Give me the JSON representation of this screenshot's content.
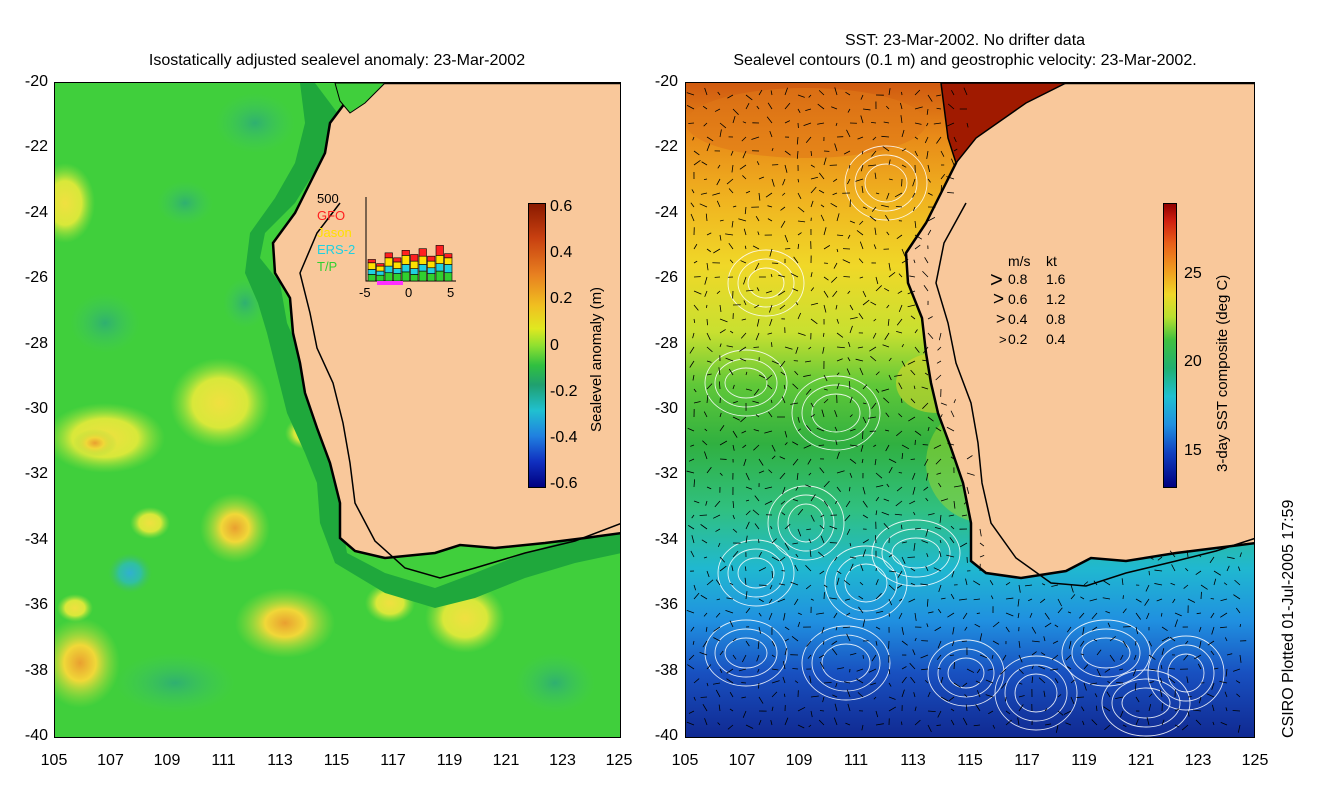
{
  "left_panel": {
    "title": "Isostatically adjusted sealevel anomaly: 23-Mar-2002",
    "y_ticks": [
      "-20",
      "-22",
      "-24",
      "-26",
      "-28",
      "-30",
      "-32",
      "-34",
      "-36",
      "-38",
      "-40"
    ],
    "x_ticks": [
      "105",
      "107",
      "109",
      "111",
      "113",
      "115",
      "117",
      "119",
      "121",
      "123",
      "125"
    ],
    "colorbar": {
      "label": "Sealevel anomaly (m)",
      "ticks": [
        "0.6",
        "0.4",
        "0.2",
        "0",
        "-0.2",
        "-0.4",
        "-0.6"
      ],
      "range": [
        -0.6,
        0.6
      ]
    },
    "inset": {
      "ymax_label": "500",
      "legend": [
        {
          "name": "GFO",
          "color": "#ff2020"
        },
        {
          "name": "Jason",
          "color": "#ffe000"
        },
        {
          "name": "ERS-2",
          "color": "#20d0e0"
        },
        {
          "name": "T/P",
          "color": "#30d030"
        }
      ],
      "x_ticks": [
        "-5",
        "0",
        "5"
      ],
      "bars": [
        {
          "tp": 40,
          "ers": 30,
          "jason": 40,
          "gfo": 20
        },
        {
          "tp": 35,
          "ers": 25,
          "jason": 30,
          "gfo": 15
        },
        {
          "tp": 50,
          "ers": 40,
          "jason": 50,
          "gfo": 30
        },
        {
          "tp": 45,
          "ers": 30,
          "jason": 40,
          "gfo": 25
        },
        {
          "tp": 55,
          "ers": 45,
          "jason": 55,
          "gfo": 30
        },
        {
          "tp": 40,
          "ers": 35,
          "jason": 45,
          "gfo": 40
        },
        {
          "tp": 60,
          "ers": 40,
          "jason": 50,
          "gfo": 45
        },
        {
          "tp": 45,
          "ers": 35,
          "jason": 40,
          "gfo": 30
        },
        {
          "tp": 60,
          "ers": 45,
          "jason": 50,
          "gfo": 60
        },
        {
          "tp": 50,
          "ers": 50,
          "jason": 40,
          "gfo": 25
        }
      ]
    }
  },
  "right_panel": {
    "title_line1": "SST: 23-Mar-2002. No drifter data",
    "title_line2": "Sealevel contours (0.1 m) and geostrophic velocity: 23-Mar-2002.",
    "y_ticks": [
      "-20",
      "-22",
      "-24",
      "-26",
      "-28",
      "-30",
      "-32",
      "-34",
      "-36",
      "-38",
      "-40"
    ],
    "x_ticks": [
      "105",
      "107",
      "109",
      "111",
      "113",
      "115",
      "117",
      "119",
      "121",
      "123",
      "125"
    ],
    "colorbar": {
      "label": "3-day SST composite (deg C)",
      "ticks": [
        "25",
        "20",
        "15"
      ],
      "range": [
        13,
        29
      ]
    },
    "velocity_legend": {
      "header_ms": "m/s",
      "header_kt": "kt",
      "rows": [
        {
          "ms": "0.8",
          "kt": "1.6"
        },
        {
          "ms": "0.6",
          "kt": "1.2"
        },
        {
          "ms": "0.4",
          "kt": "0.8"
        },
        {
          "ms": "0.2",
          "kt": "0.4"
        }
      ]
    }
  },
  "credit": "CSIRO Plotted 01-Jul-2005 17:59",
  "colors": {
    "land": "#f9c89b",
    "ocean_green": "#3fd63f",
    "shelf_green": "#20b040"
  }
}
